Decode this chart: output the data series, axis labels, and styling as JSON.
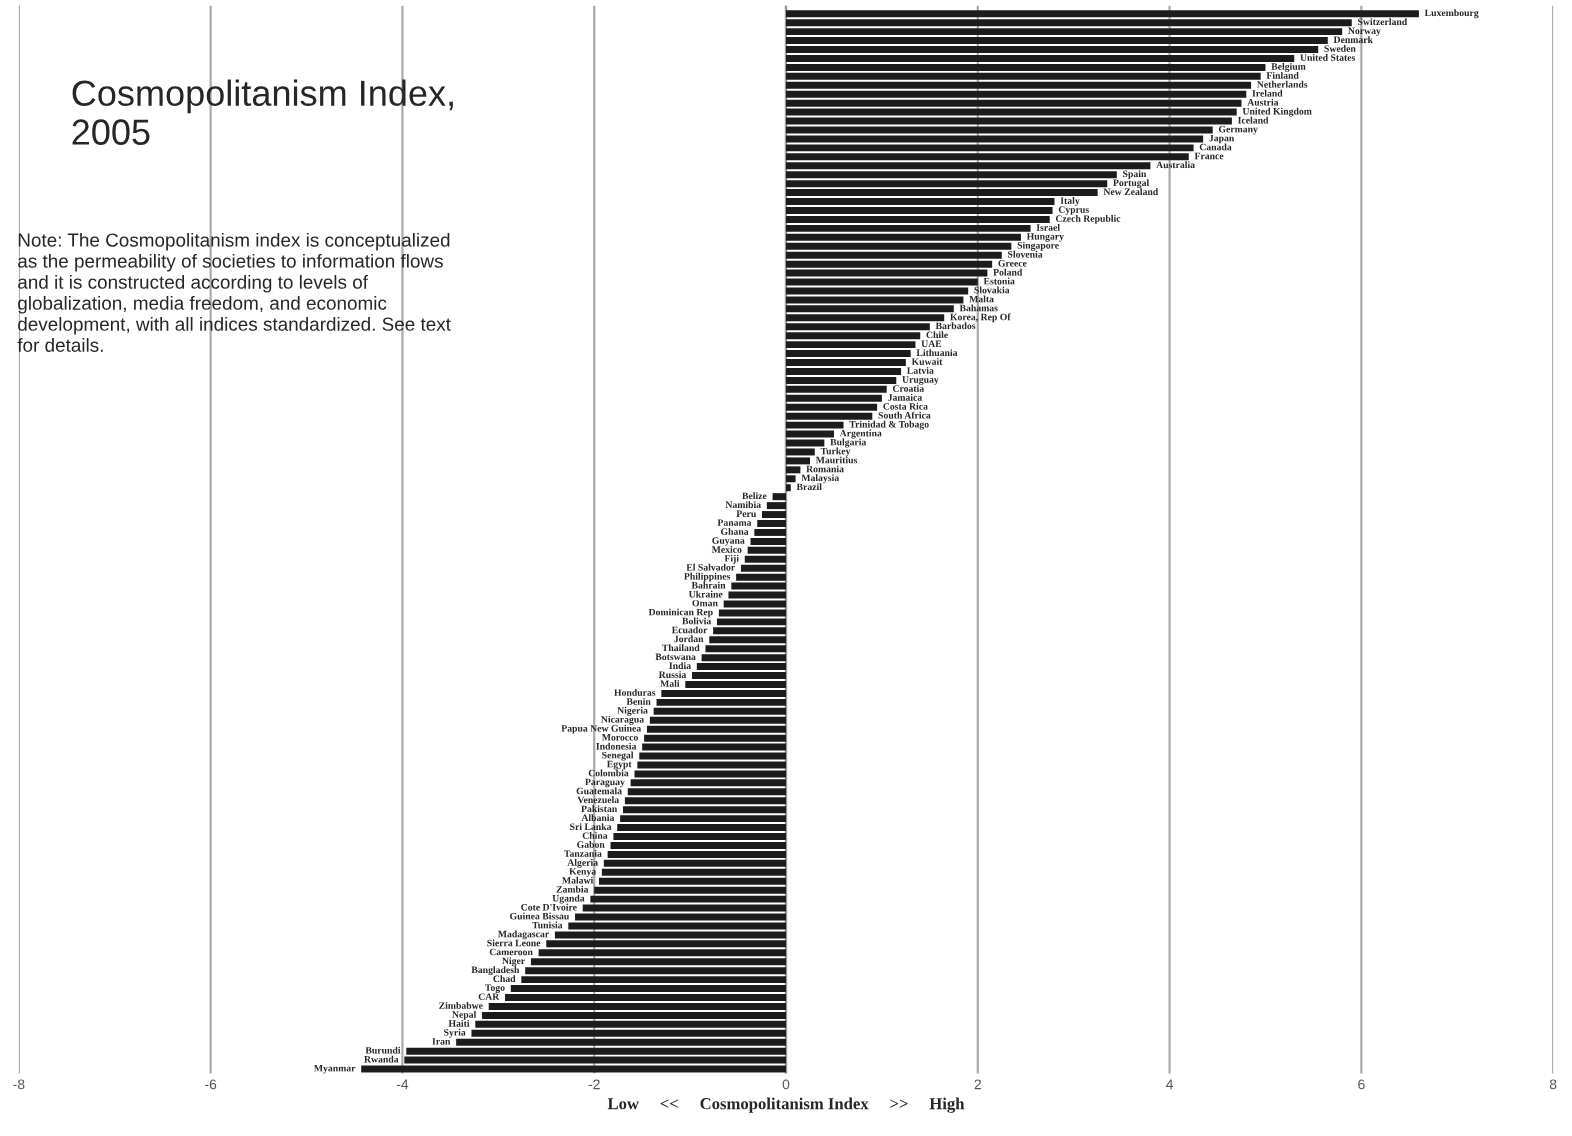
{
  "chart_data": {
    "type": "bar",
    "orientation": "horizontal",
    "title": "Cosmopolitanism Index,\n2005",
    "annotations": [
      "Note: The Cosmopolitanism index is conceptualized\nas the permeability of societies to information flows\nand it is constructed according to levels of\nglobalization, media freedom, and economic\ndevelopment, with all indices standardized. See text\nfor details."
    ],
    "xlabel": "Low     <<     Cosmopolitanism Index     >>     High",
    "categories": [
      "Luxembourg",
      "Switzerland",
      "Norway",
      "Denmark",
      "Sweden",
      "United States",
      "Belgium",
      "Finland",
      "Netherlands",
      "Ireland",
      "Austria",
      "United Kingdom",
      "Iceland",
      "Germany",
      "Japan",
      "Canada",
      "France",
      "Australia",
      "Spain",
      "Portugal",
      "New Zealand",
      "Italy",
      "Cyprus",
      "Czech Republic",
      "Israel",
      "Hungary",
      "Singapore",
      "Slovenia",
      "Greece",
      "Poland",
      "Estonia",
      "Slovakia",
      "Malta",
      "Bahamas",
      "Korea, Rep Of",
      "Barbados",
      "Chile",
      "UAE",
      "Lithuania",
      "Kuwait",
      "Latvia",
      "Uruguay",
      "Croatia",
      "Jamaica",
      "Costa Rica",
      "South Africa",
      "Trinidad & Tobago",
      "Argentina",
      "Bulgaria",
      "Turkey",
      "Mauritius",
      "Romania",
      "Malaysia",
      "Brazil",
      "Belize",
      "Namibia",
      "Peru",
      "Panama",
      "Ghana",
      "Guyana",
      "Mexico",
      "Fiji",
      "El Salvador",
      "Philippines",
      "Bahrain",
      "Ukraine",
      "Oman",
      "Dominican Rep",
      "Bolivia",
      "Ecuador",
      "Jordan",
      "Thailand",
      "Botswana",
      "India",
      "Russia",
      "Mali",
      "Honduras",
      "Benin",
      "Nigeria",
      "Nicaragua",
      "Papua New Guinea",
      "Morocco",
      "Indonesia",
      "Senegal",
      "Egypt",
      "Colombia",
      "Paraguay",
      "Guatemala",
      "Venezuela",
      "Pakistan",
      "Albania",
      "Sri Lanka",
      "China",
      "Gabon",
      "Tanzania",
      "Algeria",
      "Kenya",
      "Malawi",
      "Zambia",
      "Uganda",
      "Cote D'Ivoire",
      "Guinea Bissau",
      "Tunisia",
      "Madagascar",
      "Sierra Leone",
      "Cameroon",
      "Niger",
      "Bangladesh",
      "Chad",
      "Togo",
      "CAR",
      "Zimbabwe",
      "Nepal",
      "Haiti",
      "Syria",
      "Iran",
      "Burundi",
      "Rwanda",
      "Myanmar"
    ],
    "values": [
      6.6,
      5.9,
      5.8,
      5.65,
      5.55,
      5.3,
      5.0,
      4.95,
      4.85,
      4.8,
      4.75,
      4.7,
      4.65,
      4.45,
      4.35,
      4.25,
      4.2,
      3.8,
      3.45,
      3.35,
      3.25,
      2.8,
      2.78,
      2.75,
      2.55,
      2.45,
      2.35,
      2.25,
      2.15,
      2.1,
      2.0,
      1.9,
      1.85,
      1.75,
      1.65,
      1.5,
      1.4,
      1.35,
      1.3,
      1.25,
      1.2,
      1.15,
      1.05,
      1.0,
      0.95,
      0.9,
      0.6,
      0.5,
      0.4,
      0.3,
      0.25,
      0.15,
      0.1,
      0.05,
      -0.14,
      -0.2,
      -0.25,
      -0.3,
      -0.33,
      -0.37,
      -0.4,
      -0.43,
      -0.47,
      -0.52,
      -0.57,
      -0.6,
      -0.65,
      -0.7,
      -0.72,
      -0.76,
      -0.8,
      -0.84,
      -0.88,
      -0.93,
      -0.98,
      -1.05,
      -1.3,
      -1.35,
      -1.38,
      -1.42,
      -1.45,
      -1.48,
      -1.5,
      -1.53,
      -1.55,
      -1.58,
      -1.62,
      -1.65,
      -1.68,
      -1.7,
      -1.73,
      -1.76,
      -1.8,
      -1.83,
      -1.86,
      -1.9,
      -1.92,
      -1.95,
      -2.0,
      -2.04,
      -2.12,
      -2.2,
      -2.27,
      -2.41,
      -2.5,
      -2.58,
      -2.66,
      -2.72,
      -2.76,
      -2.87,
      -2.93,
      -3.1,
      -3.17,
      -3.24,
      -3.28,
      -3.44,
      -3.96,
      -3.98,
      -4.43
    ],
    "color": "#1c1c1c",
    "xlim": [
      -8,
      8
    ],
    "xticks": [
      -8,
      -6,
      -4,
      -2,
      0,
      2,
      4,
      6,
      8
    ],
    "grid": "x",
    "legend": false
  }
}
